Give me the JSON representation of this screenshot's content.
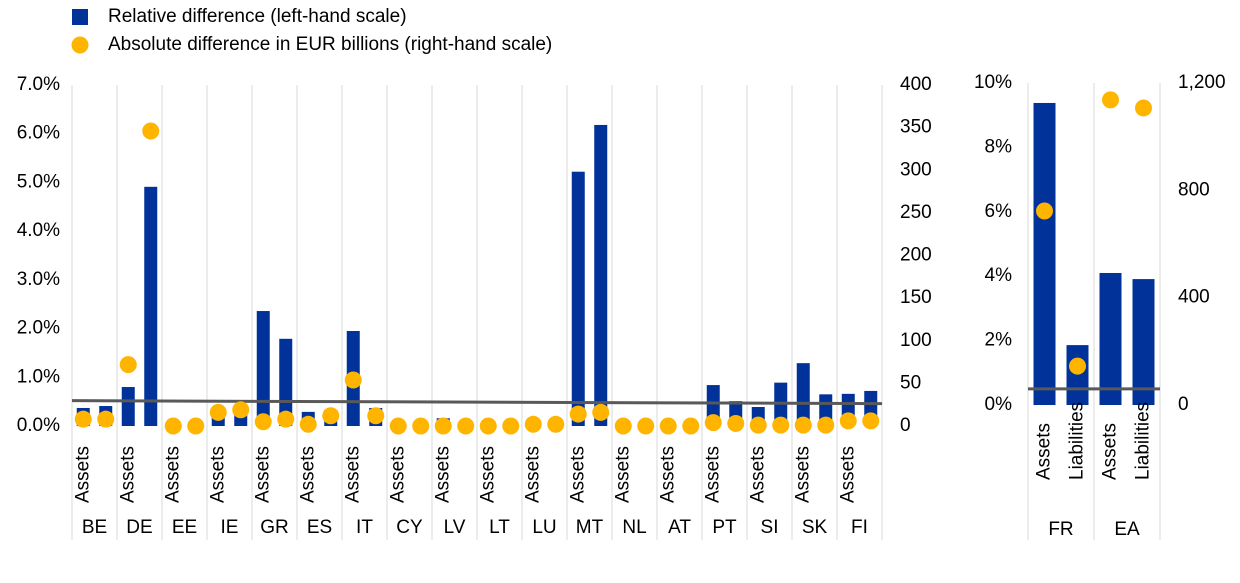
{
  "chart_data": [
    {
      "type": "bar",
      "categories": [
        "Assets",
        null,
        "Assets",
        null,
        "Assets",
        null,
        "Assets",
        null,
        "Assets",
        null,
        "Assets",
        null,
        "Assets",
        null,
        "Assets",
        null,
        "Assets",
        null,
        "Assets",
        null,
        "Assets",
        null,
        "Assets",
        null,
        "Assets",
        null,
        "Assets",
        null,
        "Assets",
        null,
        "Assets",
        null,
        "Assets",
        null,
        "Assets",
        null
      ],
      "groups": [
        "BE",
        "DE",
        "EE",
        "IE",
        "GR",
        "ES",
        "IT",
        "CY",
        "LV",
        "LT",
        "LU",
        "MT",
        "NL",
        "AT",
        "PT",
        "SI",
        "SK",
        "FI"
      ],
      "series": [
        {
          "name": "Relative difference (left-hand scale)",
          "color": "#003299",
          "mark": "bar",
          "values": [
            0.37,
            0.41,
            0.8,
            4.91,
            0,
            0,
            0.3,
            0.35,
            2.36,
            1.79,
            0.29,
            0.33,
            1.95,
            0.37,
            0,
            0,
            0.16,
            0,
            0,
            0,
            0,
            0,
            5.22,
            6.18,
            0,
            0,
            0,
            0,
            0.84,
            0.51,
            0.39,
            0.89,
            1.29,
            0.65,
            0.66,
            0.72
          ]
        },
        {
          "name": "Absolute difference in EUR billions (right-hand scale)",
          "color": "#ffb400",
          "mark": "dot",
          "axis": "y2",
          "values": [
            8,
            8,
            72,
            346,
            0,
            0,
            16,
            19,
            5,
            8,
            2,
            12,
            54,
            12,
            0,
            0,
            0,
            0,
            0,
            0,
            2,
            2,
            14,
            16,
            0,
            0,
            0,
            0,
            4,
            3,
            1,
            1,
            1,
            1,
            6,
            6
          ]
        }
      ],
      "threshold": {
        "color": "#595959",
        "values": [
          0.52,
          0.46
        ]
      },
      "ylim": [
        0,
        7
      ],
      "yticks": [
        {
          "value": 0,
          "label": "0.0%"
        },
        {
          "value": 1,
          "label": "1.0%"
        },
        {
          "value": 2,
          "label": "2.0%"
        },
        {
          "value": 3,
          "label": "3.0%"
        },
        {
          "value": 4,
          "label": "4.0%"
        },
        {
          "value": 5,
          "label": "5.0%"
        },
        {
          "value": 6,
          "label": "6.0%"
        },
        {
          "value": 7,
          "label": "7.0%"
        }
      ],
      "y2lim": [
        0,
        400
      ],
      "y2ticks": [
        0,
        50,
        100,
        150,
        200,
        250,
        300,
        350,
        400
      ]
    },
    {
      "type": "bar",
      "categories": [
        "Assets",
        "Liabilities",
        "Assets",
        "Liabilities"
      ],
      "groups": [
        "FR",
        "EA"
      ],
      "series": [
        {
          "color": "#003299",
          "mark": "bar",
          "values": [
            9.38,
            1.86,
            4.1,
            3.91
          ]
        },
        {
          "color": "#ffb400",
          "mark": "dot",
          "axis": "y2",
          "values": [
            723,
            145,
            1137,
            1107
          ]
        }
      ],
      "threshold": {
        "color": "#595959",
        "values": [
          0.5,
          0.5
        ]
      },
      "ylim": [
        0,
        10
      ],
      "yticks": [
        {
          "value": 0,
          "label": "0%"
        },
        {
          "value": 2,
          "label": "2%"
        },
        {
          "value": 4,
          "label": "4%"
        },
        {
          "value": 6,
          "label": "6%"
        },
        {
          "value": 8,
          "label": "8%"
        },
        {
          "value": 10,
          "label": "10%"
        }
      ],
      "y2lim": [
        0,
        1200
      ],
      "y2ticks": [
        0,
        400,
        800,
        {
          "value": 1200,
          "label": "1,200"
        }
      ]
    }
  ]
}
